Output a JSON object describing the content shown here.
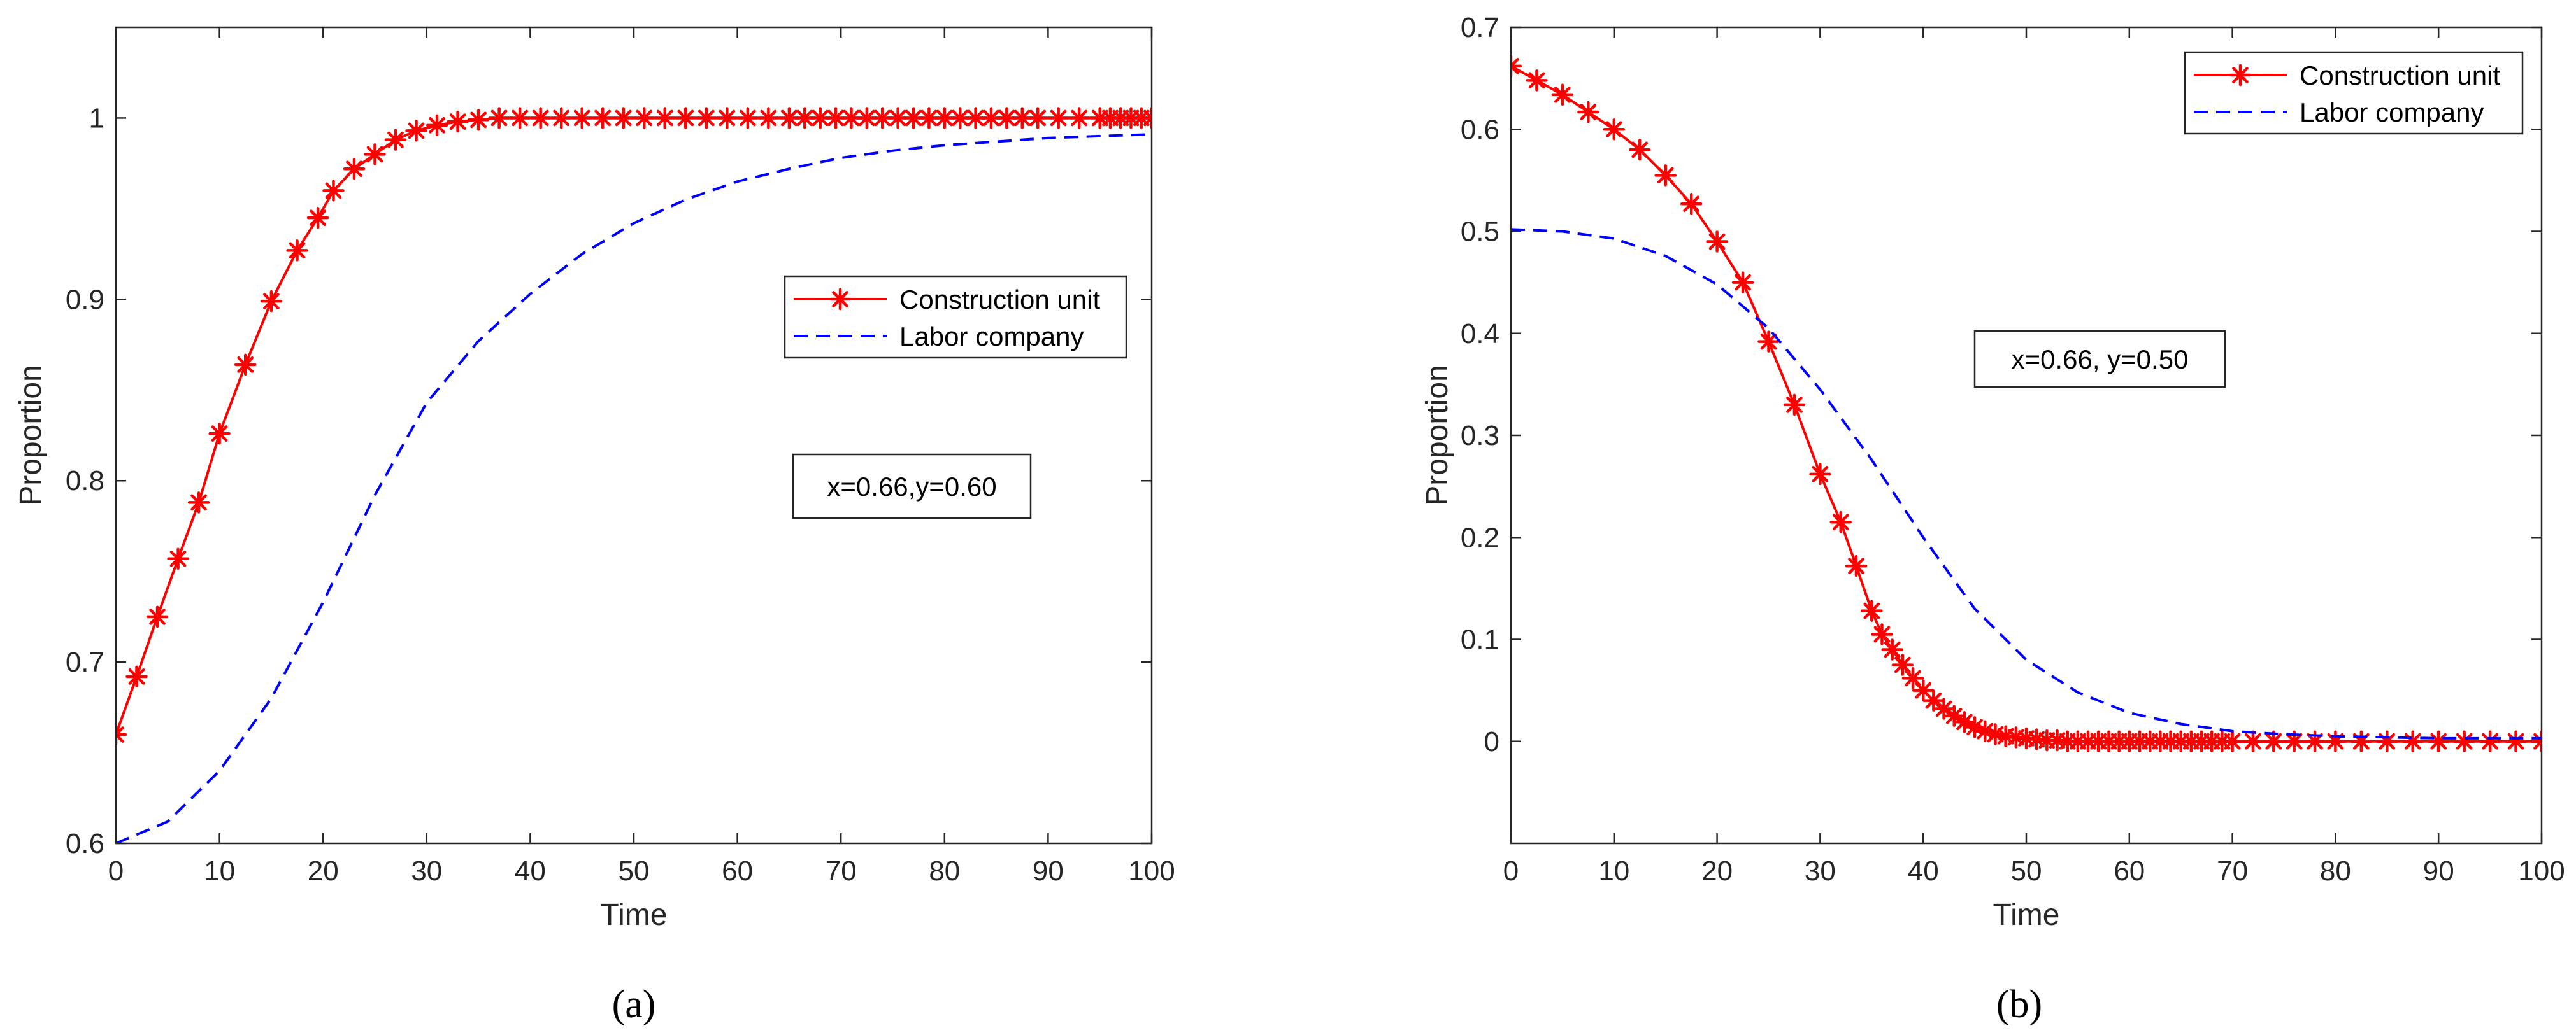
{
  "chart_data": [
    {
      "type": "line",
      "panel_label": "(a)",
      "xlabel": "Time",
      "ylabel": "Proportion",
      "xlim": [
        0,
        100
      ],
      "ylim": [
        0.6,
        1.05
      ],
      "xticks": [
        0,
        10,
        20,
        30,
        40,
        50,
        60,
        70,
        80,
        90,
        100
      ],
      "yticks": [
        0.6,
        0.7,
        0.8,
        0.9,
        1
      ],
      "ytick_labels": [
        "0.6",
        "0.7",
        "0.8",
        "0.9",
        "1"
      ],
      "legend_position": "center-right",
      "annotation": "x=0.66,y=0.60",
      "series": [
        {
          "name": "Construction unit",
          "color": "#ff0000",
          "style": "solid",
          "marker": "asterisk",
          "x": [
            0,
            2,
            4,
            6,
            8,
            10,
            12.5,
            15,
            17.5,
            19.5,
            21,
            23,
            25,
            27,
            29,
            31,
            33,
            35,
            37,
            39,
            41,
            43,
            45,
            47,
            49,
            51,
            53,
            55,
            57,
            59,
            61,
            63,
            65,
            66.5,
            68,
            69.5,
            71,
            72.5,
            74,
            75.5,
            77,
            78.5,
            80,
            81.5,
            83,
            84.5,
            86,
            87.5,
            89,
            91,
            93,
            95,
            96,
            97,
            98,
            99,
            100
          ],
          "y": [
            0.66,
            0.692,
            0.725,
            0.757,
            0.788,
            0.826,
            0.864,
            0.899,
            0.927,
            0.945,
            0.96,
            0.972,
            0.98,
            0.988,
            0.993,
            0.996,
            0.998,
            0.999,
            1,
            1,
            1,
            1,
            1,
            1,
            1,
            1,
            1,
            1,
            1,
            1,
            1,
            1,
            1,
            1,
            1,
            1,
            1,
            1,
            1,
            1,
            1,
            1,
            1,
            1,
            1,
            1,
            1,
            1,
            1,
            1,
            1,
            1,
            1,
            1,
            1,
            1,
            1
          ]
        },
        {
          "name": "Labor company",
          "color": "#0000ff",
          "style": "dashed",
          "marker": "none",
          "x": [
            0,
            5,
            10,
            15,
            20,
            25,
            30,
            35,
            40,
            45,
            50,
            55,
            60,
            65,
            70,
            75,
            80,
            85,
            90,
            95,
            100
          ],
          "y": [
            0.6,
            0.612,
            0.64,
            0.68,
            0.733,
            0.792,
            0.843,
            0.877,
            0.903,
            0.925,
            0.942,
            0.955,
            0.965,
            0.972,
            0.978,
            0.982,
            0.985,
            0.987,
            0.989,
            0.99,
            0.991
          ]
        }
      ]
    },
    {
      "type": "line",
      "panel_label": "(b)",
      "xlabel": "Time",
      "ylabel": "Proportion",
      "xlim": [
        0,
        100
      ],
      "ylim": [
        -0.1,
        0.7
      ],
      "xticks": [
        0,
        10,
        20,
        30,
        40,
        50,
        60,
        70,
        80,
        90,
        100
      ],
      "yticks": [
        0,
        0.1,
        0.2,
        0.3,
        0.4,
        0.5,
        0.6,
        0.7
      ],
      "ytick_labels": [
        "0",
        "0.1",
        "0.2",
        "0.3",
        "0.4",
        "0.5",
        "0.6",
        "0.7"
      ],
      "legend_position": "top-right",
      "annotation": "x=0.66, y=0.50",
      "series": [
        {
          "name": "Construction unit",
          "color": "#ff0000",
          "style": "solid",
          "marker": "asterisk",
          "x": [
            0,
            2.5,
            5,
            7.5,
            10,
            12.5,
            15,
            17.5,
            20,
            22.5,
            25,
            27.5,
            30,
            32,
            33.5,
            35,
            36,
            37,
            38,
            39,
            40,
            41,
            42,
            43,
            44,
            45,
            46,
            47,
            48,
            49,
            50,
            51,
            52,
            53,
            54,
            55,
            56,
            57,
            58,
            59,
            60,
            61,
            62,
            63,
            64,
            65,
            66,
            67,
            68,
            69,
            70,
            72,
            74,
            76,
            78,
            80,
            82.5,
            85,
            87.5,
            90,
            92.5,
            95,
            97.5,
            100
          ],
          "y": [
            0.662,
            0.648,
            0.634,
            0.617,
            0.6,
            0.58,
            0.555,
            0.527,
            0.49,
            0.45,
            0.392,
            0.33,
            0.262,
            0.215,
            0.172,
            0.128,
            0.105,
            0.09,
            0.075,
            0.062,
            0.05,
            0.04,
            0.032,
            0.025,
            0.019,
            0.014,
            0.01,
            0.007,
            0.005,
            0.004,
            0.003,
            0.002,
            0.001,
            0.001,
            0,
            0,
            0,
            0,
            0,
            0,
            0,
            0,
            0,
            0,
            0,
            0,
            0,
            0,
            0,
            0,
            0,
            0,
            0,
            0,
            0,
            0,
            0,
            0,
            0,
            0,
            0,
            0,
            0,
            0
          ]
        },
        {
          "name": "Labor company",
          "color": "#0000ff",
          "style": "dashed",
          "marker": "none",
          "x": [
            0,
            5,
            10,
            15,
            20,
            25,
            30,
            35,
            40,
            45,
            50,
            55,
            60,
            65,
            70,
            75,
            80,
            85,
            90,
            95,
            100
          ],
          "y": [
            0.502,
            0.5,
            0.493,
            0.476,
            0.448,
            0.405,
            0.345,
            0.276,
            0.2,
            0.13,
            0.08,
            0.048,
            0.028,
            0.017,
            0.01,
            0.007,
            0.005,
            0.004,
            0.003,
            0.003,
            0.003
          ]
        }
      ]
    }
  ]
}
